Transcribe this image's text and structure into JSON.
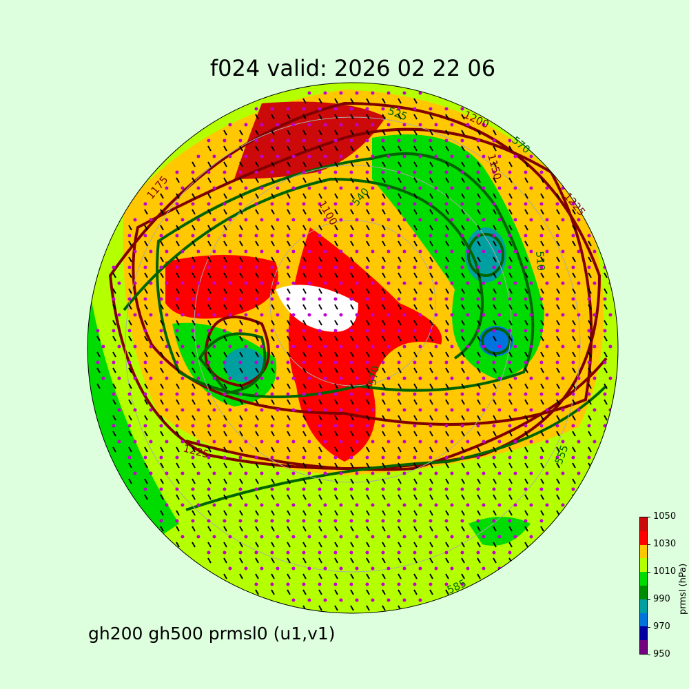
{
  "title": "f024 valid:   2026 02 22 06",
  "subtitle": "gh200 gh500 prmsl0 (u1,v1)",
  "colorbar": {
    "label": "prmsl (hPa)",
    "ticks": [
      "950",
      "970",
      "990",
      "1010",
      "1030",
      "1050"
    ],
    "colors": [
      "#73007f",
      "#0000a0",
      "#0073dd",
      "#00a0a0",
      "#008c00",
      "#00dc00",
      "#b4ff00",
      "#ffc800",
      "#ff0000",
      "#cd0a0a"
    ]
  },
  "contour_labels": {
    "gh200": [
      "1200",
      "1225",
      "1225",
      "1100",
      "1150",
      "1175"
    ],
    "gh500": [
      "570",
      "540",
      "525",
      "510",
      "585",
      "555",
      "570"
    ]
  },
  "colors": {
    "background": "#ddffdd",
    "gh200": "#800000",
    "gh500": "#006400",
    "wind_barb": "#000000",
    "points": "#c000d0"
  }
}
